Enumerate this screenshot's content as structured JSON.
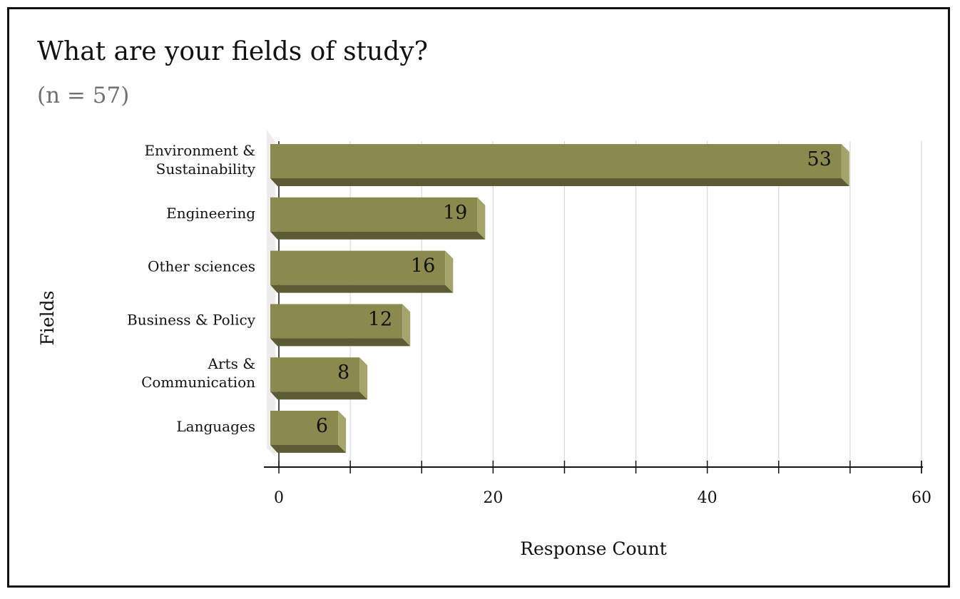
{
  "title": "What are your fields of study?",
  "subtitle": "(n = 57)",
  "colors": {
    "bar_front": "#8b8a4e",
    "bar_side": "#a5a46a",
    "bar_bottom": "#5c5b33",
    "grid": "#d8d8d8",
    "axis": "#111111",
    "wall": "#ececec"
  },
  "chart_data": {
    "type": "bar",
    "orientation": "horizontal",
    "style": "3d",
    "categories": [
      [
        "Environment &",
        "Sustainability"
      ],
      [
        "Engineering"
      ],
      [
        "Other sciences"
      ],
      [
        "Business & Policy"
      ],
      [
        "Arts &",
        "Communication"
      ],
      [
        "Languages"
      ]
    ],
    "values": [
      53,
      19,
      16,
      12,
      8,
      6
    ],
    "data_labels": [
      "53",
      "19",
      "16",
      "12",
      "8",
      "6"
    ],
    "xlabel": "Response Count",
    "ylabel": "Fields",
    "xlim": [
      0,
      60
    ],
    "x_ticks": [
      "0",
      "20",
      "40",
      "60"
    ],
    "minor_tick_interval": 6.6667,
    "grid": true,
    "legend": "none"
  }
}
